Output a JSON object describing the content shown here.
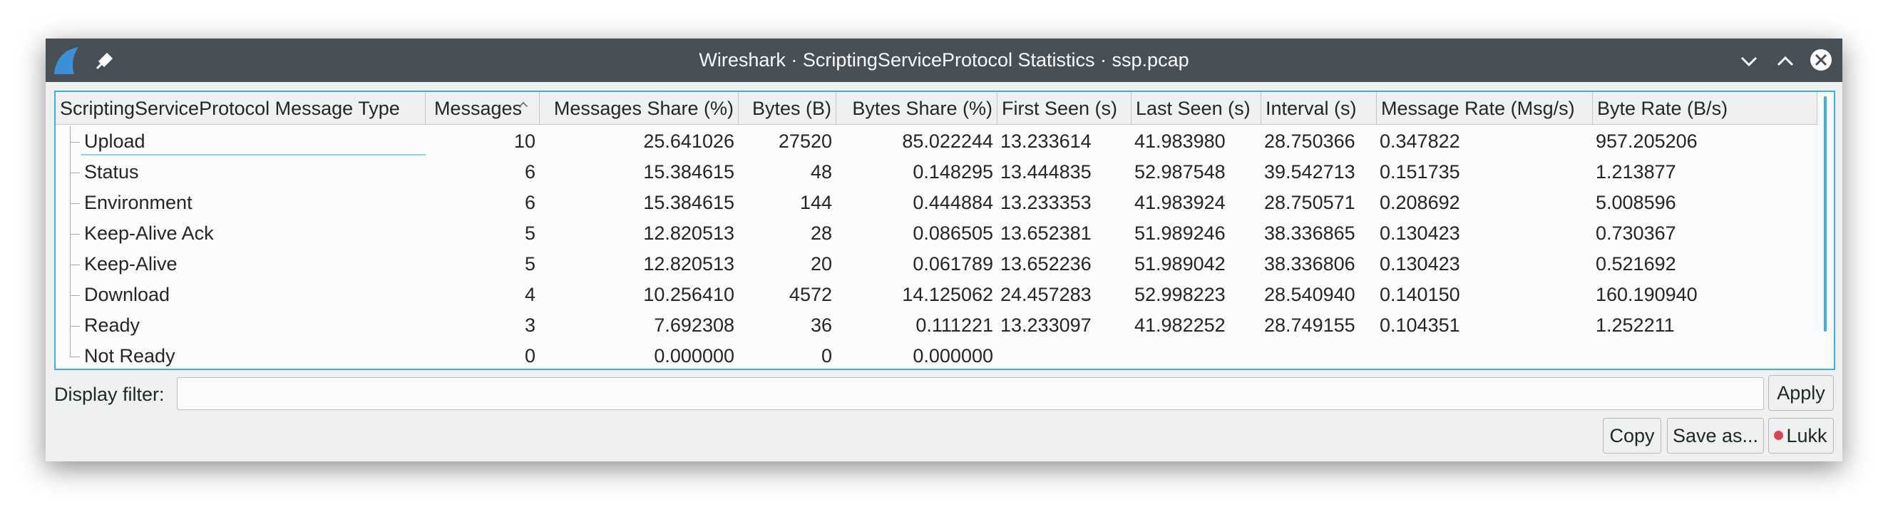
{
  "window": {
    "title": "Wireshark · ScriptingServiceProtocol Statistics · ssp.pcap"
  },
  "table": {
    "columns": [
      "ScriptingServiceProtocol Message Type",
      "Messages",
      "Messages Share (%)",
      "Bytes (B)",
      "Bytes Share (%)",
      "First Seen (s)",
      "Last Seen (s)",
      "Interval (s)",
      "Message Rate (Msg/s)",
      "Byte Rate (B/s)"
    ],
    "rows": [
      [
        "Upload",
        "10",
        "25.641026",
        "27520",
        "85.022244",
        "13.233614",
        "41.983980",
        "28.750366",
        "0.347822",
        "957.205206"
      ],
      [
        "Status",
        "6",
        "15.384615",
        "48",
        "0.148295",
        "13.444835",
        "52.987548",
        "39.542713",
        "0.151735",
        "1.213877"
      ],
      [
        "Environment",
        "6",
        "15.384615",
        "144",
        "0.444884",
        "13.233353",
        "41.983924",
        "28.750571",
        "0.208692",
        "5.008596"
      ],
      [
        "Keep-Alive Ack",
        "5",
        "12.820513",
        "28",
        "0.086505",
        "13.652381",
        "51.989246",
        "38.336865",
        "0.130423",
        "0.730367"
      ],
      [
        "Keep-Alive",
        "5",
        "12.820513",
        "20",
        "0.061789",
        "13.652236",
        "51.989042",
        "38.336806",
        "0.130423",
        "0.521692"
      ],
      [
        "Download",
        "4",
        "10.256410",
        "4572",
        "14.125062",
        "24.457283",
        "52.998223",
        "28.540940",
        "0.140150",
        "160.190940"
      ],
      [
        "Ready",
        "3",
        "7.692308",
        "36",
        "0.111221",
        "13.233097",
        "41.982252",
        "28.749155",
        "0.104351",
        "1.252211"
      ],
      [
        "Not Ready",
        "0",
        "0.000000",
        "0",
        "0.000000"
      ]
    ]
  },
  "filter": {
    "label": "Display filter:",
    "apply": "Apply"
  },
  "buttons": [
    "Copy",
    "Save as...",
    "Lukk"
  ]
}
